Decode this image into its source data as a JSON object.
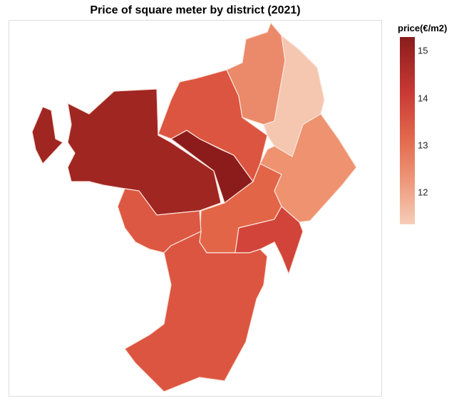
{
  "chart_data": {
    "type": "choropleth",
    "title": "Price of square meter by district (2021)",
    "legend": {
      "title": "price(€/m2)",
      "ticks": [
        "15",
        "14",
        "13",
        "12"
      ],
      "range": [
        11.3,
        15.3
      ],
      "placement": "right",
      "colors": [
        "#f6cdb8",
        "#ee9a7c",
        "#e36a4e",
        "#c93a34",
        "#8a1c1c"
      ]
    },
    "regions": [
      {
        "values_estimate": 14.9,
        "color": "#a02622"
      },
      {
        "values_estimate": 15.2,
        "color": "#8c1c1c"
      },
      {
        "values_estimate": 13.6,
        "color": "#dc5540"
      },
      {
        "values_estimate": 12.7,
        "color": "#ea8a6a"
      },
      {
        "values_estimate": 11.5,
        "color": "#f5c6b0"
      },
      {
        "values_estimate": 12.6,
        "color": "#ee9270"
      },
      {
        "values_estimate": 13.3,
        "color": "#e36548"
      },
      {
        "values_estimate": 13.5,
        "color": "#dd5842"
      },
      {
        "values_estimate": 13.9,
        "color": "#d2443a"
      },
      {
        "values_estimate": 13.5,
        "color": "#dc5541"
      }
    ]
  }
}
